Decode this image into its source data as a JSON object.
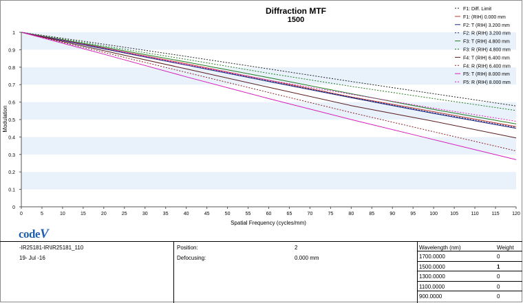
{
  "chart_data": {
    "type": "line",
    "title": "Diffraction MTF",
    "subtitle": "1500",
    "xlabel": "Spatial Frequency (cycles/mm)",
    "ylabel": "Modulation",
    "xlim": [
      0,
      120
    ],
    "ylim": [
      0,
      1
    ],
    "xticks": [
      "0",
      "5",
      "10",
      "15",
      "20",
      "25",
      "30",
      "35",
      "40",
      "45",
      "50",
      "55",
      "60",
      "65",
      "70",
      "75",
      "80",
      "85",
      "90",
      "95",
      "100",
      "105",
      "110",
      "115",
      "120"
    ],
    "yticks": [
      "0",
      "0.1",
      "0.2",
      "0.3",
      "0.4",
      "0.5",
      "0.6",
      "0.7",
      "0.8",
      "0.9",
      "1"
    ],
    "x": [
      0,
      20,
      40,
      60,
      80,
      100,
      120
    ],
    "legend_position": "top-right",
    "series": [
      {
        "name": "F1: Diff. Limit",
        "color": "#202020",
        "dash": "2,2",
        "values": [
          1.0,
          0.932,
          0.862,
          0.79,
          0.718,
          0.648,
          0.578
        ]
      },
      {
        "name": "F1: (RIH) 0.000 mm",
        "color": "#c0392b",
        "dash": "",
        "values": [
          1.0,
          0.91,
          0.82,
          0.725,
          0.63,
          0.545,
          0.46
        ]
      },
      {
        "name": "F2: T (RIH) 3.200 mm",
        "color": "#1a237e",
        "dash": "",
        "values": [
          1.0,
          0.905,
          0.812,
          0.718,
          0.625,
          0.535,
          0.45
        ]
      },
      {
        "name": "F2: R (RIH) 3.200 mm",
        "color": "#1a237e",
        "dash": "2,2",
        "values": [
          1.0,
          0.906,
          0.814,
          0.72,
          0.628,
          0.538,
          0.455
        ]
      },
      {
        "name": "F3: T (RIH) 4.800 mm",
        "color": "#1f7a1f",
        "dash": "",
        "values": [
          1.0,
          0.915,
          0.83,
          0.74,
          0.648,
          0.558,
          0.475
        ]
      },
      {
        "name": "F3: R (RIH) 4.800 mm",
        "color": "#1f7a1f",
        "dash": "2,2",
        "values": [
          1.0,
          0.922,
          0.845,
          0.765,
          0.69,
          0.62,
          0.552
        ]
      },
      {
        "name": "F4: T (RIH) 6.400 mm",
        "color": "#5a1a1a",
        "dash": "",
        "values": [
          1.0,
          0.895,
          0.79,
          0.685,
          0.58,
          0.49,
          0.395
        ]
      },
      {
        "name": "F4: R (RIH) 6.400 mm",
        "color": "#8b2020",
        "dash": "2,2",
        "values": [
          1.0,
          0.885,
          0.77,
          0.655,
          0.54,
          0.43,
          0.32
        ]
      },
      {
        "name": "F5: T (RIH) 8.000 mm",
        "color": "#d81bbf",
        "dash": "",
        "values": [
          1.0,
          0.875,
          0.745,
          0.62,
          0.5,
          0.385,
          0.27
        ]
      },
      {
        "name": "F5: R (RIH) 8.000 mm",
        "color": "#d81bbf",
        "dash": "2,2",
        "values": [
          1.0,
          0.91,
          0.815,
          0.725,
          0.645,
          0.565,
          0.49
        ]
      }
    ]
  },
  "logo_text": {
    "code": "code",
    "v": "V"
  },
  "info": {
    "lens": "-IR25181-IR\\IR25181_110",
    "date": "19- Jul -16",
    "position_label": "Position:",
    "position_value": "2",
    "defocusing_label": "Defocusing:",
    "defocusing_value": "0.000 mm",
    "wavelength_header": "Wavelength (nm)",
    "weight_header": "Weight",
    "wavelengths": [
      {
        "wavelength": "1700.0000",
        "weight": "0"
      },
      {
        "wavelength": "1500.0000",
        "weight": "1"
      },
      {
        "wavelength": "1300.0000",
        "weight": "0"
      },
      {
        "wavelength": "1100.0000",
        "weight": "0"
      },
      {
        "wavelength": "900.0000",
        "weight": "0"
      }
    ]
  }
}
